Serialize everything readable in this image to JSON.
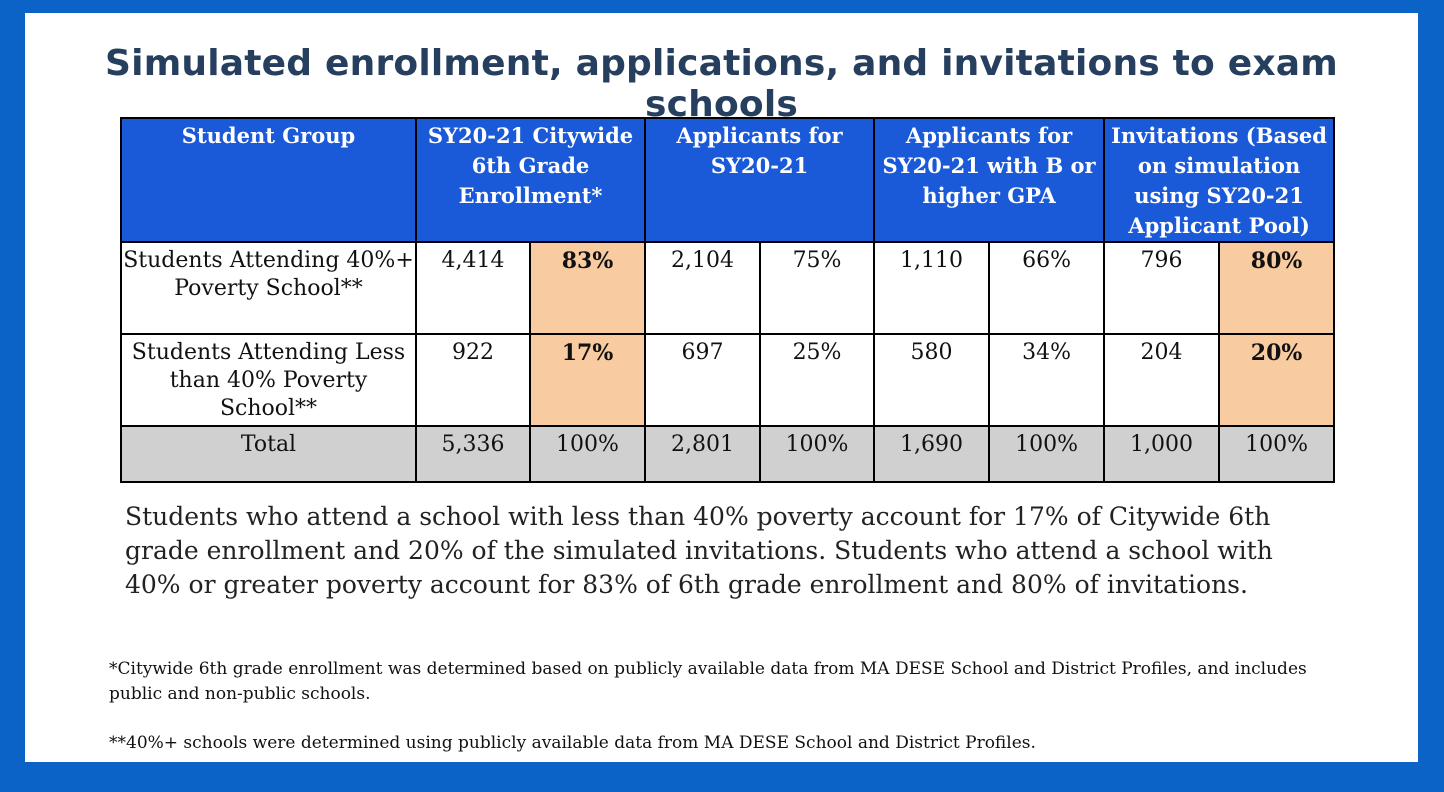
{
  "title": "Simulated enrollment, applications, and invitations to exam schools",
  "table": {
    "headers": [
      "Student Group",
      "SY20-21 Citywide 6th Grade Enrollment*",
      "Applicants for SY20-21",
      "Applicants for SY20-21 with B or higher GPA",
      "Invitations (Based on simulation using SY20-21 Applicant Pool)"
    ],
    "rows": [
      {
        "group": "Students Attending 40%+ Poverty School**",
        "enroll_n": "4,414",
        "enroll_pct": "83%",
        "app_n": "2,104",
        "app_pct": "75%",
        "gpa_n": "1,110",
        "gpa_pct": "66%",
        "inv_n": "796",
        "inv_pct": "80%"
      },
      {
        "group": "Students Attending Less than 40% Poverty School**",
        "enroll_n": "922",
        "enroll_pct": "17%",
        "app_n": "697",
        "app_pct": "25%",
        "gpa_n": "580",
        "gpa_pct": "34%",
        "inv_n": "204",
        "inv_pct": "20%"
      },
      {
        "group": "Total",
        "enroll_n": "5,336",
        "enroll_pct": "100%",
        "app_n": "2,801",
        "app_pct": "100%",
        "gpa_n": "1,690",
        "gpa_pct": "100%",
        "inv_n": "1,000",
        "inv_pct": "100%"
      }
    ]
  },
  "summary": "Students who attend a school with less than 40% poverty account for 17% of Citywide 6th grade enrollment and 20% of the simulated invitations. Students who attend a school with 40% or greater poverty account for 83% of 6th grade enrollment and 80% of invitations.",
  "footnotes": [
    "*Citywide 6th grade enrollment was determined based on publicly available data from MA DESE School and District Profiles, and includes public and non-public schools.",
    "**40%+ schools were determined using publicly available data from MA DESE School and District Profiles."
  ],
  "colors": {
    "border": "#0b63c7",
    "header_bg": "#1a59d8",
    "highlight": "#f8cba0",
    "total_bg": "#d0d0d0",
    "title": "#263f5f"
  }
}
